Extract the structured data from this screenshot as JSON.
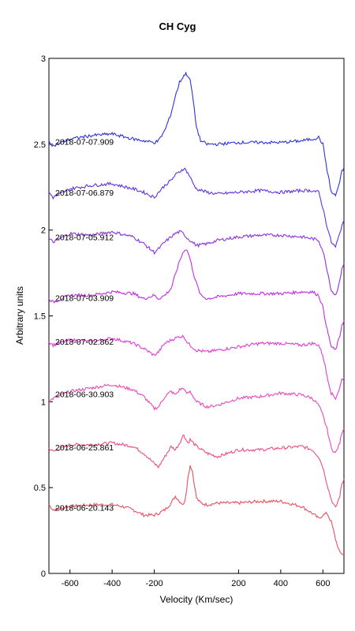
{
  "chart_data": {
    "type": "line",
    "title": "CH Cyg",
    "xlabel": "Velocity (Km/sec)",
    "ylabel": "Arbitrary units",
    "xlim": [
      -700,
      700
    ],
    "ylim": [
      0,
      3
    ],
    "xticks": [
      -600,
      -400,
      -200,
      200,
      400,
      600
    ],
    "xtick_labels": [
      "-600",
      "-400",
      "-200",
      "200",
      "400",
      "600"
    ],
    "yticks": [
      0,
      0.5,
      1,
      1.5,
      2,
      2.5,
      3
    ],
    "ytick_labels": [
      "0",
      "0.5",
      "1",
      "1.5",
      "2",
      "2.5",
      "3"
    ],
    "grid": false,
    "series": [
      {
        "name": "2018-06-20.143",
        "color": "#e8505f",
        "x": [
          -700,
          -680,
          -600,
          -500,
          -400,
          -350,
          -300,
          -250,
          -200,
          -180,
          -150,
          -120,
          -100,
          -80,
          -60,
          -50,
          -40,
          -30,
          -20,
          -10,
          0,
          20,
          50,
          100,
          200,
          300,
          400,
          500,
          550,
          580,
          600,
          620,
          640,
          660,
          680,
          700
        ],
        "y": [
          0.4,
          0.37,
          0.39,
          0.4,
          0.4,
          0.39,
          0.37,
          0.34,
          0.34,
          0.35,
          0.37,
          0.41,
          0.45,
          0.42,
          0.4,
          0.46,
          0.56,
          0.63,
          0.6,
          0.52,
          0.44,
          0.41,
          0.4,
          0.41,
          0.41,
          0.42,
          0.42,
          0.39,
          0.35,
          0.32,
          0.34,
          0.35,
          0.3,
          0.2,
          0.12,
          0.11
        ]
      },
      {
        "name": "2018-06-25.861",
        "color": "#ec4d86",
        "x": [
          -700,
          -680,
          -600,
          -500,
          -400,
          -300,
          -250,
          -200,
          -180,
          -150,
          -120,
          -100,
          -80,
          -60,
          -50,
          -40,
          -30,
          0,
          50,
          100,
          200,
          300,
          400,
          500,
          550,
          580,
          600,
          620,
          640,
          660,
          680,
          690,
          700
        ],
        "y": [
          0.73,
          0.71,
          0.75,
          0.75,
          0.76,
          0.74,
          0.7,
          0.64,
          0.62,
          0.68,
          0.74,
          0.72,
          0.76,
          0.81,
          0.78,
          0.76,
          0.78,
          0.74,
          0.7,
          0.68,
          0.72,
          0.72,
          0.73,
          0.74,
          0.72,
          0.68,
          0.62,
          0.52,
          0.43,
          0.38,
          0.45,
          0.52,
          0.55
        ]
      },
      {
        "name": "2018-06-30.903",
        "color": "#eb48b8",
        "x": [
          -700,
          -680,
          -600,
          -500,
          -400,
          -300,
          -250,
          -200,
          -180,
          -150,
          -120,
          -100,
          -80,
          -60,
          -50,
          -40,
          -30,
          0,
          50,
          100,
          200,
          300,
          400,
          500,
          550,
          580,
          600,
          620,
          640,
          660,
          680,
          690,
          700
        ],
        "y": [
          1.0,
          1.02,
          1.06,
          1.08,
          1.1,
          1.07,
          1.03,
          0.96,
          0.97,
          1.03,
          1.06,
          1.04,
          1.07,
          1.08,
          1.05,
          1.05,
          1.06,
          1.0,
          0.97,
          0.98,
          1.02,
          1.03,
          1.05,
          1.04,
          1.02,
          0.98,
          0.92,
          0.84,
          0.73,
          0.7,
          0.76,
          0.82,
          0.85
        ]
      },
      {
        "name": "2018-07-02.862",
        "color": "#e03ed8",
        "x": [
          -700,
          -680,
          -600,
          -500,
          -400,
          -300,
          -250,
          -200,
          -180,
          -150,
          -120,
          -100,
          -80,
          -60,
          -50,
          -40,
          -30,
          0,
          50,
          100,
          200,
          300,
          400,
          500,
          550,
          580,
          600,
          620,
          640,
          660,
          680,
          690,
          700
        ],
        "y": [
          1.35,
          1.33,
          1.36,
          1.35,
          1.37,
          1.34,
          1.31,
          1.27,
          1.29,
          1.34,
          1.36,
          1.37,
          1.38,
          1.38,
          1.36,
          1.34,
          1.33,
          1.3,
          1.29,
          1.3,
          1.32,
          1.34,
          1.34,
          1.33,
          1.34,
          1.33,
          1.27,
          1.15,
          1.05,
          1.02,
          1.08,
          1.13,
          1.14
        ]
      },
      {
        "name": "2018-07-03.909",
        "color": "#c02fe5",
        "x": [
          -700,
          -680,
          -600,
          -500,
          -400,
          -300,
          -250,
          -200,
          -180,
          -150,
          -120,
          -100,
          -80,
          -60,
          -50,
          -40,
          -30,
          -20,
          -10,
          0,
          20,
          50,
          100,
          200,
          300,
          400,
          500,
          550,
          580,
          600,
          620,
          640,
          660,
          680,
          690,
          700
        ],
        "y": [
          1.6,
          1.58,
          1.62,
          1.62,
          1.64,
          1.63,
          1.6,
          1.62,
          1.6,
          1.62,
          1.66,
          1.74,
          1.82,
          1.88,
          1.89,
          1.87,
          1.83,
          1.78,
          1.73,
          1.69,
          1.62,
          1.6,
          1.61,
          1.63,
          1.63,
          1.63,
          1.64,
          1.64,
          1.62,
          1.55,
          1.42,
          1.32,
          1.3,
          1.38,
          1.45,
          1.47
        ]
      },
      {
        "name": "2018-07-05.912",
        "color": "#8e31e4",
        "x": [
          -700,
          -680,
          -600,
          -500,
          -400,
          -300,
          -250,
          -200,
          -180,
          -150,
          -120,
          -100,
          -80,
          -60,
          -50,
          -40,
          -30,
          0,
          50,
          100,
          200,
          300,
          400,
          500,
          550,
          580,
          600,
          620,
          640,
          660,
          680,
          690,
          700
        ],
        "y": [
          1.95,
          1.93,
          1.98,
          1.97,
          1.99,
          1.96,
          1.92,
          1.87,
          1.89,
          1.93,
          1.96,
          1.98,
          1.99,
          1.98,
          1.96,
          1.95,
          1.94,
          1.91,
          1.92,
          1.94,
          1.96,
          1.97,
          1.97,
          1.96,
          1.95,
          1.94,
          1.88,
          1.77,
          1.65,
          1.62,
          1.7,
          1.78,
          1.8
        ]
      },
      {
        "name": "2018-07-06.879",
        "color": "#5f33e3",
        "x": [
          -700,
          -680,
          -600,
          -500,
          -400,
          -300,
          -250,
          -200,
          -180,
          -150,
          -120,
          -100,
          -80,
          -60,
          -50,
          -40,
          -30,
          -20,
          0,
          50,
          100,
          200,
          300,
          400,
          500,
          550,
          580,
          600,
          620,
          640,
          660,
          680,
          690,
          700
        ],
        "y": [
          2.22,
          2.19,
          2.24,
          2.26,
          2.27,
          2.24,
          2.22,
          2.19,
          2.22,
          2.26,
          2.29,
          2.32,
          2.34,
          2.36,
          2.35,
          2.33,
          2.31,
          2.28,
          2.24,
          2.22,
          2.21,
          2.22,
          2.23,
          2.22,
          2.23,
          2.23,
          2.22,
          2.13,
          2.02,
          1.93,
          1.9,
          1.98,
          2.03,
          2.05
        ]
      },
      {
        "name": "2018-07-07.909",
        "color": "#2f34e0",
        "x": [
          -700,
          -680,
          -600,
          -500,
          -400,
          -300,
          -250,
          -200,
          -180,
          -150,
          -120,
          -100,
          -80,
          -60,
          -50,
          -40,
          -30,
          -20,
          -10,
          0,
          20,
          50,
          100,
          200,
          300,
          400,
          500,
          550,
          580,
          600,
          620,
          640,
          660,
          680,
          690,
          700
        ],
        "y": [
          2.52,
          2.49,
          2.53,
          2.55,
          2.56,
          2.53,
          2.52,
          2.51,
          2.52,
          2.58,
          2.68,
          2.78,
          2.86,
          2.9,
          2.91,
          2.9,
          2.87,
          2.8,
          2.7,
          2.6,
          2.52,
          2.5,
          2.5,
          2.51,
          2.51,
          2.51,
          2.52,
          2.53,
          2.54,
          2.5,
          2.35,
          2.22,
          2.2,
          2.28,
          2.34,
          2.36
        ]
      }
    ]
  }
}
